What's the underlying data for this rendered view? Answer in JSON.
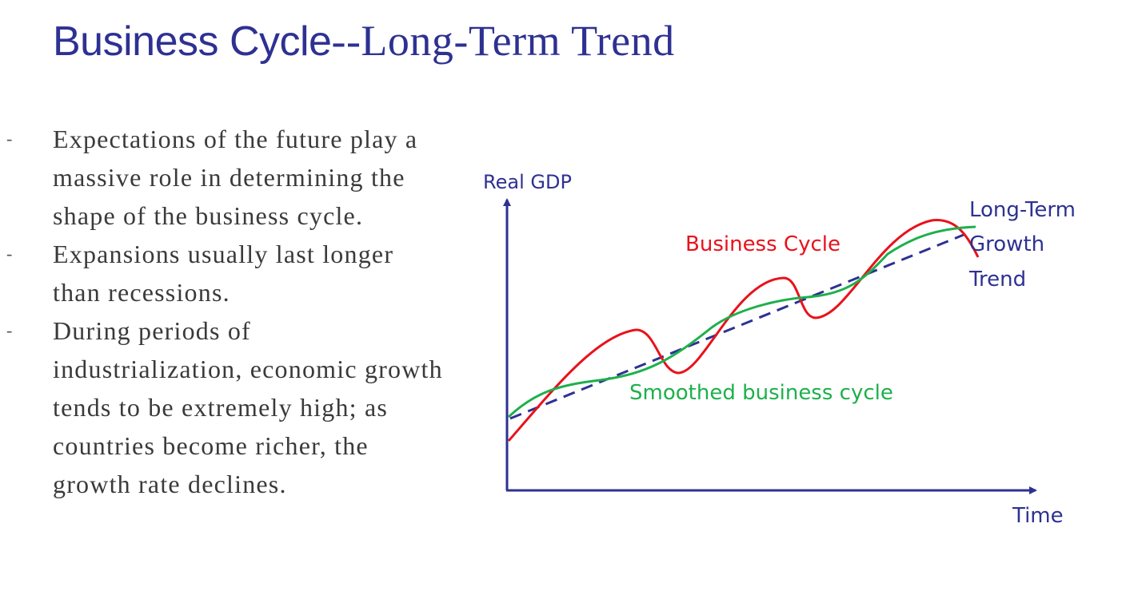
{
  "title": {
    "part1": "Business Cycle",
    "part2": "--Long-Term Trend"
  },
  "bullets": [
    "Expectations of the future play a massive role in determining the shape of the business cycle.",
    "Expansions usually last longer than recessions.",
    "During periods of industrialization,  economic growth tends to be extremely high; as countries become richer, the growth rate declines."
  ],
  "bullet_marker": "-",
  "diagram": {
    "y_axis_label": "Real GDP",
    "x_axis_label": "Time",
    "labels": {
      "business_cycle": "Business Cycle",
      "smoothed": "Smoothed business cycle",
      "trend_line1": "Long-Term",
      "trend_line2": "Growth",
      "trend_line3": "Trend"
    },
    "colors": {
      "axis": "#2E3192",
      "business_cycle": "#E8121B",
      "smoothed": "#1DB04B",
      "trend": "#2E3192"
    }
  }
}
